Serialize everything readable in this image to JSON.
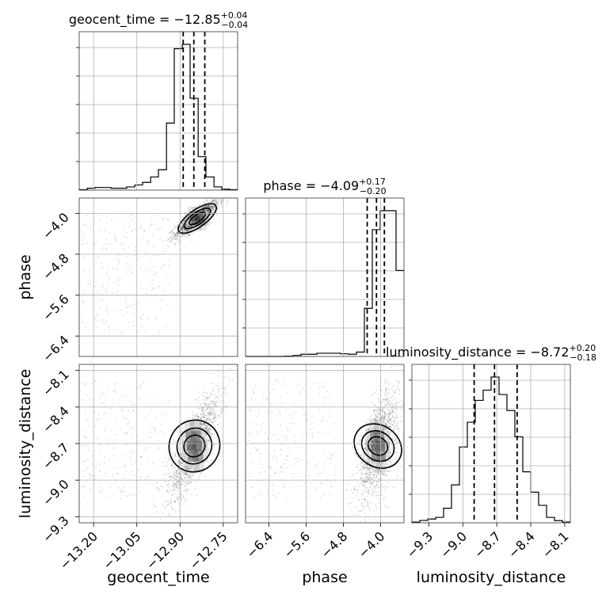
{
  "chart_data": {
    "type": "corner",
    "parameters": [
      "geocent_time",
      "phase",
      "luminosity_distance"
    ],
    "grid": true,
    "panels": [
      {
        "id": "hist-geocent_time",
        "type": "histogram",
        "param": "geocent_time",
        "title": {
          "name": "geocent_time",
          "value": "−12.85",
          "plus": "+0.04",
          "minus": "−0.04"
        },
        "xlim": [
          -13.25,
          -12.7
        ],
        "bin_edges": [
          -13.25,
          -13.222,
          -13.195,
          -13.167,
          -13.14,
          -13.112,
          -13.085,
          -13.057,
          -13.03,
          -13.002,
          -12.975,
          -12.947,
          -12.92,
          -12.892,
          -12.865,
          -12.837,
          -12.81,
          -12.782,
          -12.755,
          -12.727,
          -12.7
        ],
        "counts": [
          0.3,
          1.3,
          1.8,
          1.8,
          1.3,
          1.3,
          2.2,
          3.5,
          5.3,
          9.0,
          14.0,
          46.0,
          97.0,
          100.0,
          63.0,
          23.0,
          9.0,
          2.2,
          0.6,
          0.3
        ],
        "quantiles": [
          -12.889,
          -12.852,
          -12.814
        ]
      },
      {
        "id": "hist-phase",
        "type": "histogram",
        "param": "phase",
        "title": {
          "name": "phase",
          "value": "−4.09",
          "plus": "+0.17",
          "minus": "−0.20"
        },
        "xlim": [
          -6.9,
          -3.5
        ],
        "bin_edges": [
          -6.9,
          -6.73,
          -6.56,
          -6.39,
          -6.22,
          -6.05,
          -5.88,
          -5.71,
          -5.54,
          -5.37,
          -5.2,
          -5.03,
          -4.86,
          -4.69,
          -4.52,
          -4.35,
          -4.18,
          -4.01,
          -3.84,
          -3.67,
          -3.5
        ],
        "counts": [
          0.0,
          0.0,
          0.0,
          0.0,
          0.0,
          0.2,
          0.7,
          1.5,
          1.5,
          2.2,
          2.2,
          2.2,
          1.8,
          1.5,
          3.0,
          33.0,
          87.0,
          100.0,
          100.0,
          59.0
        ],
        "quantiles": [
          -4.29,
          -4.09,
          -3.92
        ]
      },
      {
        "id": "hist-luminosity_distance",
        "type": "histogram",
        "param": "luminosity_distance",
        "title": {
          "name": "luminosity_distance",
          "value": "−8.72",
          "plus": "+0.20",
          "minus": "−0.18"
        },
        "xlim": [
          -9.45,
          -8.05
        ],
        "bin_edges": [
          -9.45,
          -9.38,
          -9.31,
          -9.24,
          -9.17,
          -9.1,
          -9.03,
          -8.96,
          -8.89,
          -8.82,
          -8.75,
          -8.68,
          -8.61,
          -8.54,
          -8.47,
          -8.4,
          -8.33,
          -8.26,
          -8.19,
          -8.12,
          -8.05
        ],
        "counts": [
          0.5,
          1.6,
          2.6,
          3.7,
          10.0,
          26.0,
          52.0,
          69.0,
          84.0,
          91.0,
          100.0,
          88.0,
          77.0,
          59.0,
          35.0,
          21.0,
          12.0,
          3.7,
          1.5,
          0.5
        ],
        "quantiles": [
          -8.9,
          -8.72,
          -8.52
        ]
      },
      {
        "id": "scatter-geocent_time-phase",
        "type": "2d-density",
        "x": "geocent_time",
        "y": "phase",
        "xlim": [
          -13.25,
          -12.7
        ],
        "ylim": [
          -6.8,
          -3.7
        ],
        "core": {
          "center": [
            -12.84,
            -4.1
          ],
          "sx": 0.03,
          "sy": 0.14,
          "rho": 0.85
        },
        "contours": [
          [
            -12.9,
            -4.25
          ],
          [
            -12.86,
            -4.12
          ],
          [
            -12.83,
            -4.05
          ]
        ]
      },
      {
        "id": "scatter-geocent_time-luminosity_distance",
        "type": "2d-density",
        "x": "geocent_time",
        "y": "luminosity_distance",
        "xlim": [
          -13.25,
          -12.7
        ],
        "ylim": [
          -9.35,
          -8.05
        ],
        "core": {
          "center": [
            -12.85,
            -8.72
          ],
          "sx": 0.035,
          "sy": 0.17,
          "rho": 0.8
        },
        "contours": [
          [
            -12.88,
            -8.85
          ],
          [
            -12.86,
            -8.76
          ],
          [
            -12.84,
            -8.68
          ]
        ]
      },
      {
        "id": "scatter-phase-luminosity_distance",
        "type": "2d-density",
        "x": "phase",
        "y": "luminosity_distance",
        "xlim": [
          -6.9,
          -3.5
        ],
        "ylim": [
          -9.35,
          -8.05
        ],
        "core": {
          "center": [
            -4.06,
            -8.72
          ],
          "sx": 0.17,
          "sy": 0.17,
          "rho": 0.55
        },
        "contours": [
          [
            -4.12,
            -8.85
          ],
          [
            -4.08,
            -8.76
          ],
          [
            -4.04,
            -8.68
          ]
        ]
      }
    ],
    "axes": {
      "xlabels": [
        "geocent_time",
        "phase",
        "luminosity_distance"
      ],
      "ylabels": [
        "phase",
        "luminosity_distance"
      ],
      "xticks": {
        "geocent_time": {
          "values": [
            -13.2,
            -13.05,
            -12.9,
            -12.75
          ],
          "labels": [
            "−13.20",
            "−13.05",
            "−12.90",
            "−12.75"
          ]
        },
        "phase": {
          "values": [
            -6.4,
            -5.6,
            -4.8,
            -4.0
          ],
          "labels": [
            "−6.4",
            "−5.6",
            "−4.8",
            "−4.0"
          ]
        },
        "luminosity_distance": {
          "values": [
            -9.3,
            -9.0,
            -8.7,
            -8.4,
            -8.1
          ],
          "labels": [
            "−9.3",
            "−9.0",
            "−8.7",
            "−8.4",
            "−8.1"
          ]
        }
      },
      "yticks": {
        "phase": {
          "values": [
            -4.0,
            -4.8,
            -5.6,
            -6.4
          ],
          "labels": [
            "−4.0",
            "−4.8",
            "−5.6",
            "−6.4"
          ]
        },
        "luminosity_distance": {
          "values": [
            -8.1,
            -8.4,
            -8.7,
            -9.0,
            -9.3
          ],
          "labels": [
            "−8.1",
            "−8.4",
            "−8.7",
            "−9.0",
            "−9.3"
          ]
        }
      }
    }
  }
}
